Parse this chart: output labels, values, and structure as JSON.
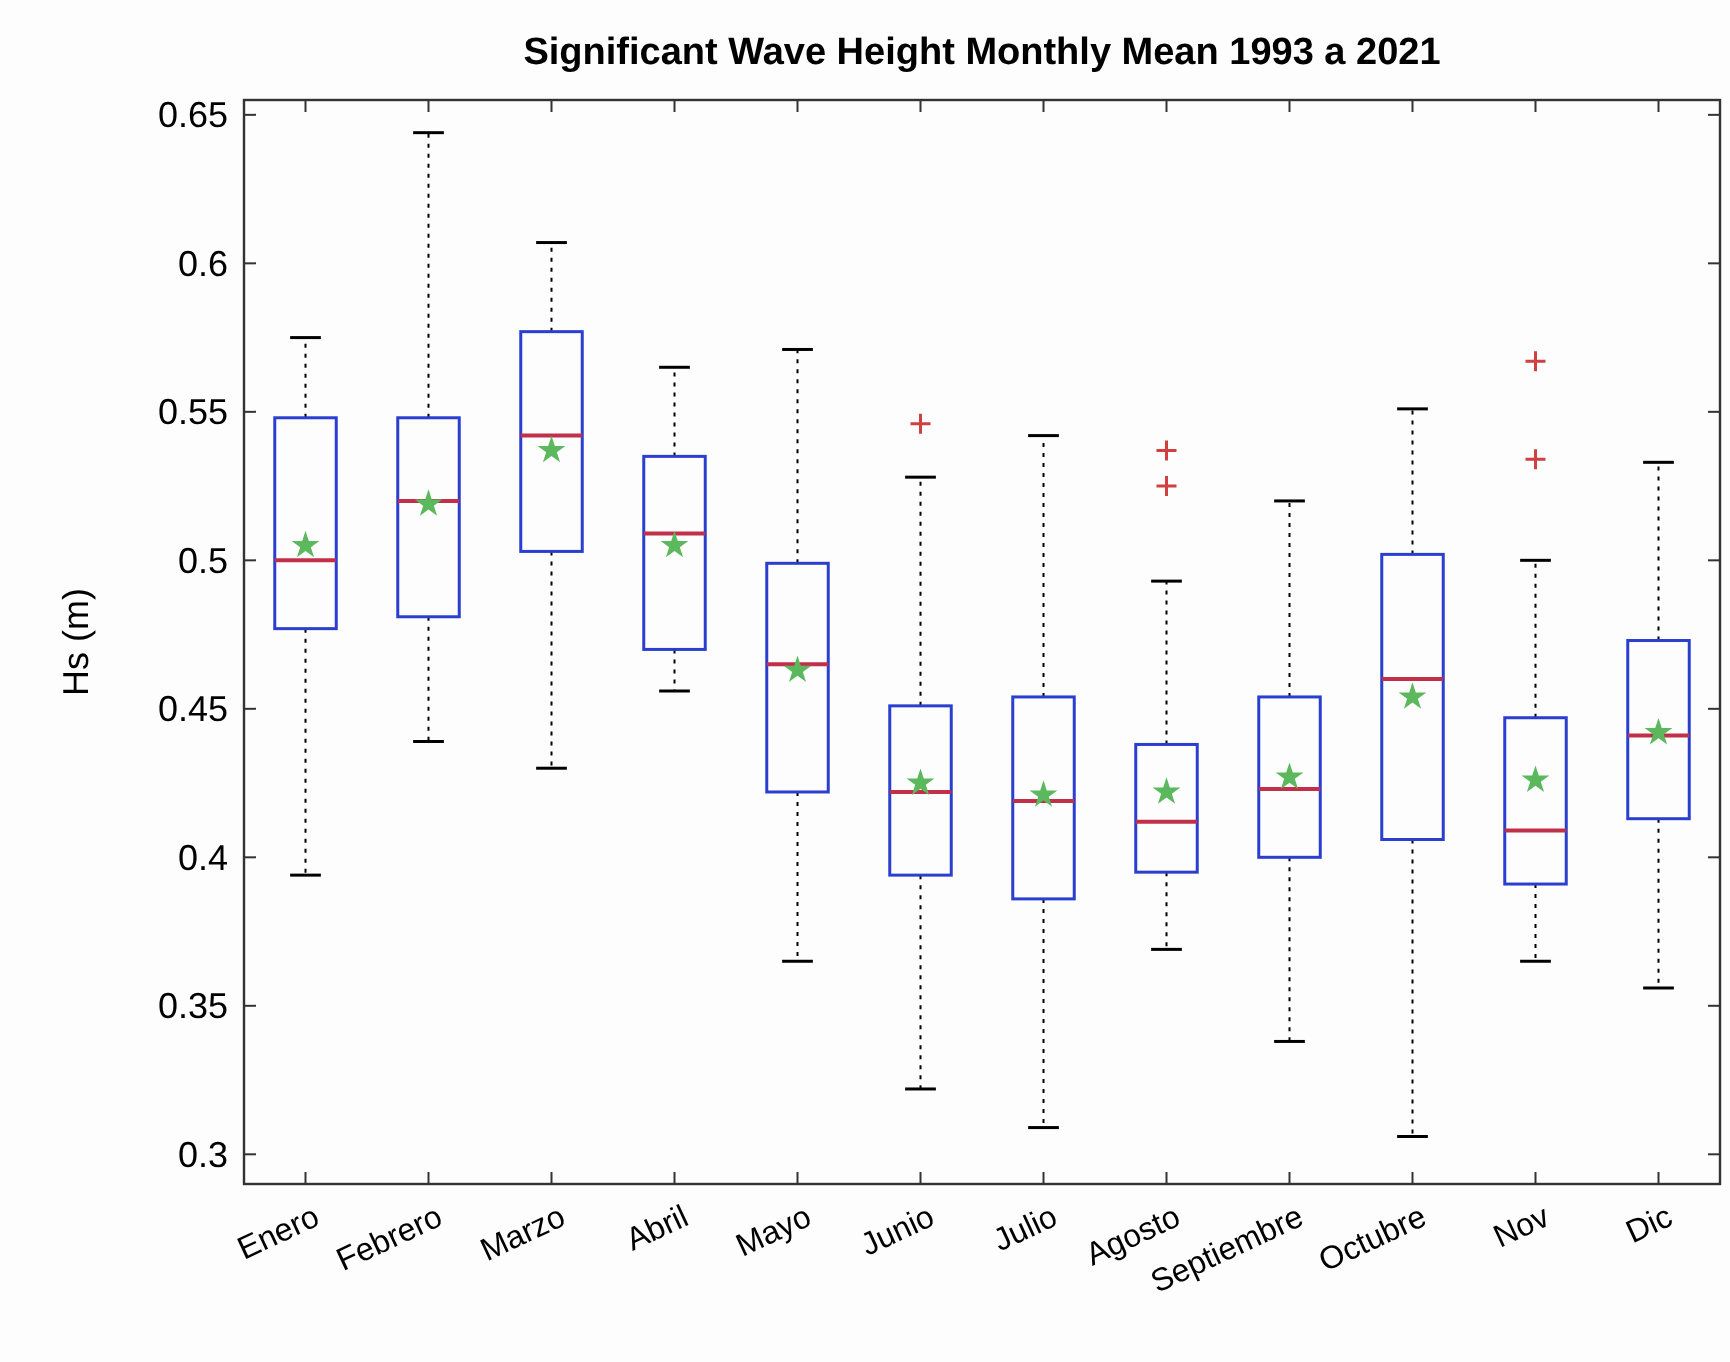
{
  "chart_data": {
    "type": "box",
    "title": "Significant Wave Height Monthly Mean 1993 a 2021",
    "ylabel": "Hs (m)",
    "categories": [
      "Enero",
      "Febrero",
      "Marzo",
      "Abril",
      "Mayo",
      "Junio",
      "Julio",
      "Agosto",
      "Septiembre",
      "Octubre",
      "Nov",
      "Dic"
    ],
    "color": "#2a3fd0",
    "ylim": [
      0.29,
      0.655
    ],
    "yticks": [
      0.3,
      0.35,
      0.4,
      0.45,
      0.5,
      0.55,
      0.6,
      0.65
    ],
    "grid": false,
    "boxes": [
      {
        "low": 0.394,
        "q1": 0.477,
        "median": 0.5,
        "q3": 0.548,
        "high": 0.575,
        "mean": 0.505
      },
      {
        "low": 0.439,
        "q1": 0.481,
        "median": 0.52,
        "q3": 0.548,
        "high": 0.644,
        "mean": 0.519
      },
      {
        "low": 0.43,
        "q1": 0.503,
        "median": 0.542,
        "q3": 0.577,
        "high": 0.607,
        "mean": 0.537
      },
      {
        "low": 0.456,
        "q1": 0.47,
        "median": 0.509,
        "q3": 0.535,
        "high": 0.565,
        "mean": 0.505
      },
      {
        "low": 0.365,
        "q1": 0.422,
        "median": 0.465,
        "q3": 0.499,
        "high": 0.571,
        "mean": 0.463
      },
      {
        "low": 0.322,
        "q1": 0.394,
        "median": 0.422,
        "q3": 0.451,
        "high": 0.528,
        "mean": 0.425,
        "outliers": [
          0.546
        ]
      },
      {
        "low": 0.309,
        "q1": 0.386,
        "median": 0.419,
        "q3": 0.454,
        "high": 0.542,
        "mean": 0.421
      },
      {
        "low": 0.369,
        "q1": 0.395,
        "median": 0.412,
        "q3": 0.438,
        "high": 0.493,
        "mean": 0.422,
        "outliers": [
          0.525,
          0.537
        ]
      },
      {
        "low": 0.338,
        "q1": 0.4,
        "median": 0.423,
        "q3": 0.454,
        "high": 0.52,
        "mean": 0.427
      },
      {
        "low": 0.306,
        "q1": 0.406,
        "median": 0.46,
        "q3": 0.502,
        "high": 0.551,
        "mean": 0.454
      },
      {
        "low": 0.365,
        "q1": 0.391,
        "median": 0.409,
        "q3": 0.447,
        "high": 0.5,
        "mean": 0.426,
        "outliers": [
          0.534,
          0.567
        ]
      },
      {
        "low": 0.356,
        "q1": 0.413,
        "median": 0.441,
        "q3": 0.473,
        "high": 0.533,
        "mean": 0.442
      }
    ]
  }
}
